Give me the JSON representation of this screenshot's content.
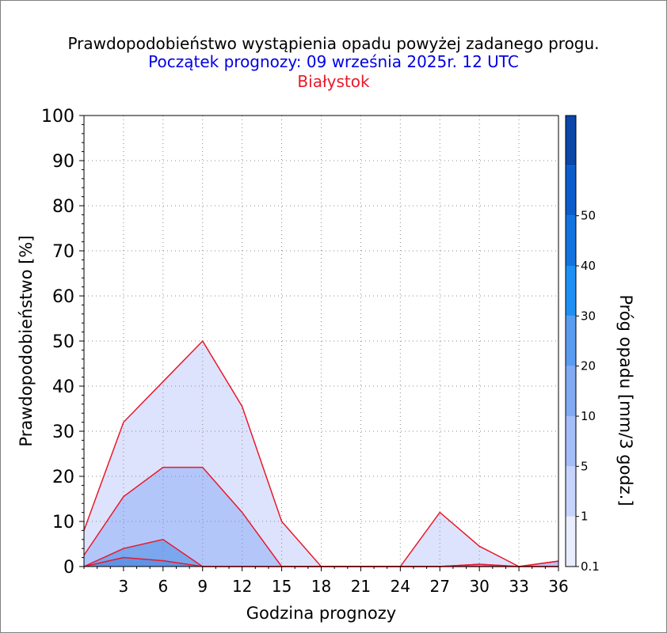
{
  "title": "Prawdopodobieństwo wystąpienia opadu powyżej zadanego progu.",
  "subtitle": "Początek prognozy: 09 września 2025r. 12 UTC",
  "station": "Białystok",
  "colors": {
    "title": "#000000",
    "subtitle": "#0000e6",
    "station": "#e8192a",
    "contour_line": "#e8192a",
    "grid": "#8a8a8a"
  },
  "chart_data": {
    "type": "area",
    "xlabel": "Godzina prognozy",
    "ylabel": "Prawdopodobieństwo [%]",
    "colorbar_label": "Próg opadu [mm/3 godz.]",
    "xlim": [
      0,
      36
    ],
    "ylim": [
      0,
      100
    ],
    "x_ticks": [
      3,
      6,
      9,
      12,
      15,
      18,
      21,
      24,
      27,
      30,
      33,
      36
    ],
    "y_ticks": [
      0,
      10,
      20,
      30,
      40,
      50,
      60,
      70,
      80,
      90,
      100
    ],
    "grid": true,
    "x": [
      0,
      3,
      6,
      9,
      12,
      15,
      18,
      21,
      24,
      27,
      30,
      33,
      36
    ],
    "series": [
      {
        "threshold": 0.1,
        "color": "#dde3fd",
        "values": [
          8,
          32,
          41,
          50,
          35.5,
          10,
          0,
          0,
          0,
          12,
          4.5,
          0,
          1.2
        ]
      },
      {
        "threshold": 1,
        "color": "#b3c6fa",
        "values": [
          2.5,
          15.5,
          22,
          22,
          12,
          0,
          0,
          0,
          0,
          0,
          0.5,
          0,
          1.2
        ]
      },
      {
        "threshold": 5,
        "color": "#7aa7ee",
        "values": [
          0,
          4,
          6,
          0,
          0,
          0,
          0,
          0,
          0,
          0,
          0.5,
          0,
          0
        ]
      },
      {
        "threshold": 10,
        "color": "#5f93e6",
        "values": [
          0,
          2,
          1.3,
          0,
          0,
          0,
          0,
          0,
          0,
          0,
          0,
          0,
          0
        ]
      }
    ],
    "colorbar": {
      "ticks": [
        0.1,
        1,
        5,
        10,
        20,
        30,
        40,
        50
      ],
      "bands": [
        {
          "from": 0.1,
          "color": "#e9edfd"
        },
        {
          "from": 1,
          "color": "#c6d4fc"
        },
        {
          "from": 5,
          "color": "#a5bdf8"
        },
        {
          "from": 10,
          "color": "#82aaf2"
        },
        {
          "from": 20,
          "color": "#5a9cf0"
        },
        {
          "from": 30,
          "color": "#1e90f4"
        },
        {
          "from": 40,
          "color": "#1273e0"
        },
        {
          "from": 50,
          "color": "#0c5dcc"
        },
        {
          "from": 60,
          "color": "#0a47a8"
        }
      ]
    }
  }
}
